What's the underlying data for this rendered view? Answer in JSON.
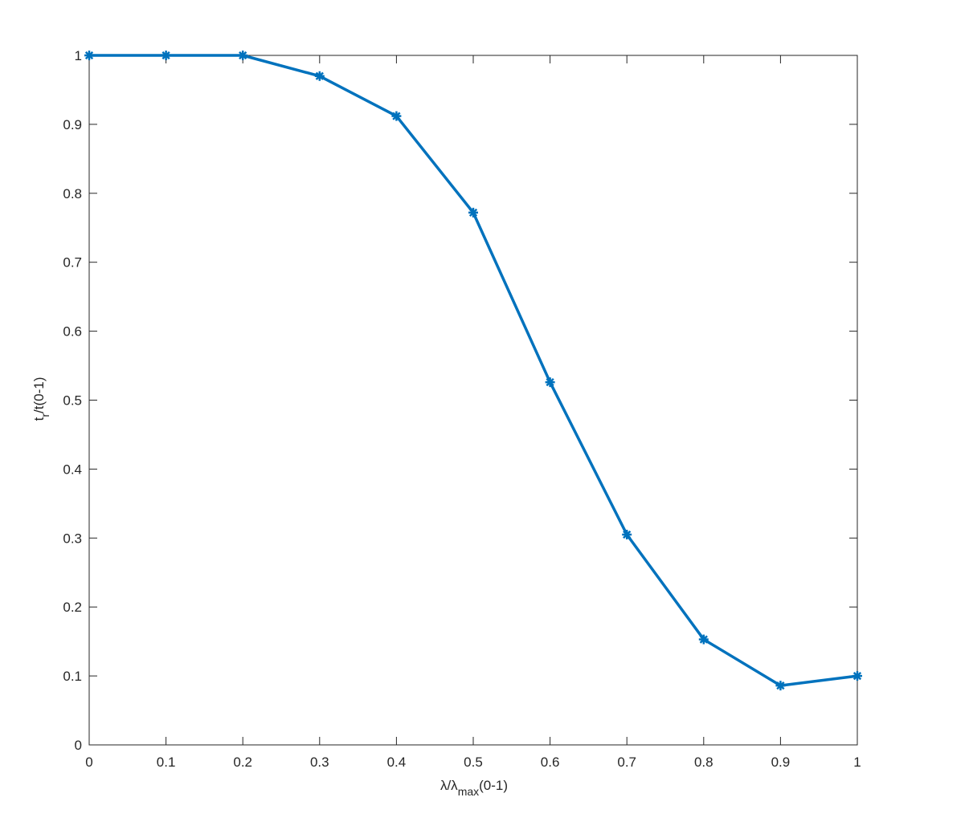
{
  "chart_data": {
    "type": "line",
    "xlabel": [
      {
        "text": "λ"
      },
      {
        "text": "/λ"
      },
      {
        "text": "max",
        "sub": true
      },
      {
        "text": "(0-1)"
      }
    ],
    "ylabel": [
      {
        "text": "t"
      },
      {
        "text": "r",
        "sub": true
      },
      {
        "text": "/t(0-1)"
      }
    ],
    "x": [
      0,
      0.1,
      0.2,
      0.3,
      0.4,
      0.5,
      0.6,
      0.7,
      0.8,
      0.9,
      1
    ],
    "values": [
      1,
      1,
      1,
      0.97,
      0.912,
      0.772,
      0.526,
      0.305,
      0.153,
      0.086,
      0.1
    ],
    "color": "#0072bd",
    "marker": "asterisk",
    "xlim": [
      0,
      1
    ],
    "xticks": [
      0,
      0.1,
      0.2,
      0.3,
      0.4,
      0.5,
      0.6,
      0.7,
      0.8,
      0.9,
      1
    ],
    "ylim": [
      0,
      1
    ],
    "yticks": [
      0,
      0.1,
      0.2,
      0.3,
      0.4,
      0.5,
      0.6,
      0.7,
      0.8,
      0.9,
      1
    ],
    "grid": false
  }
}
